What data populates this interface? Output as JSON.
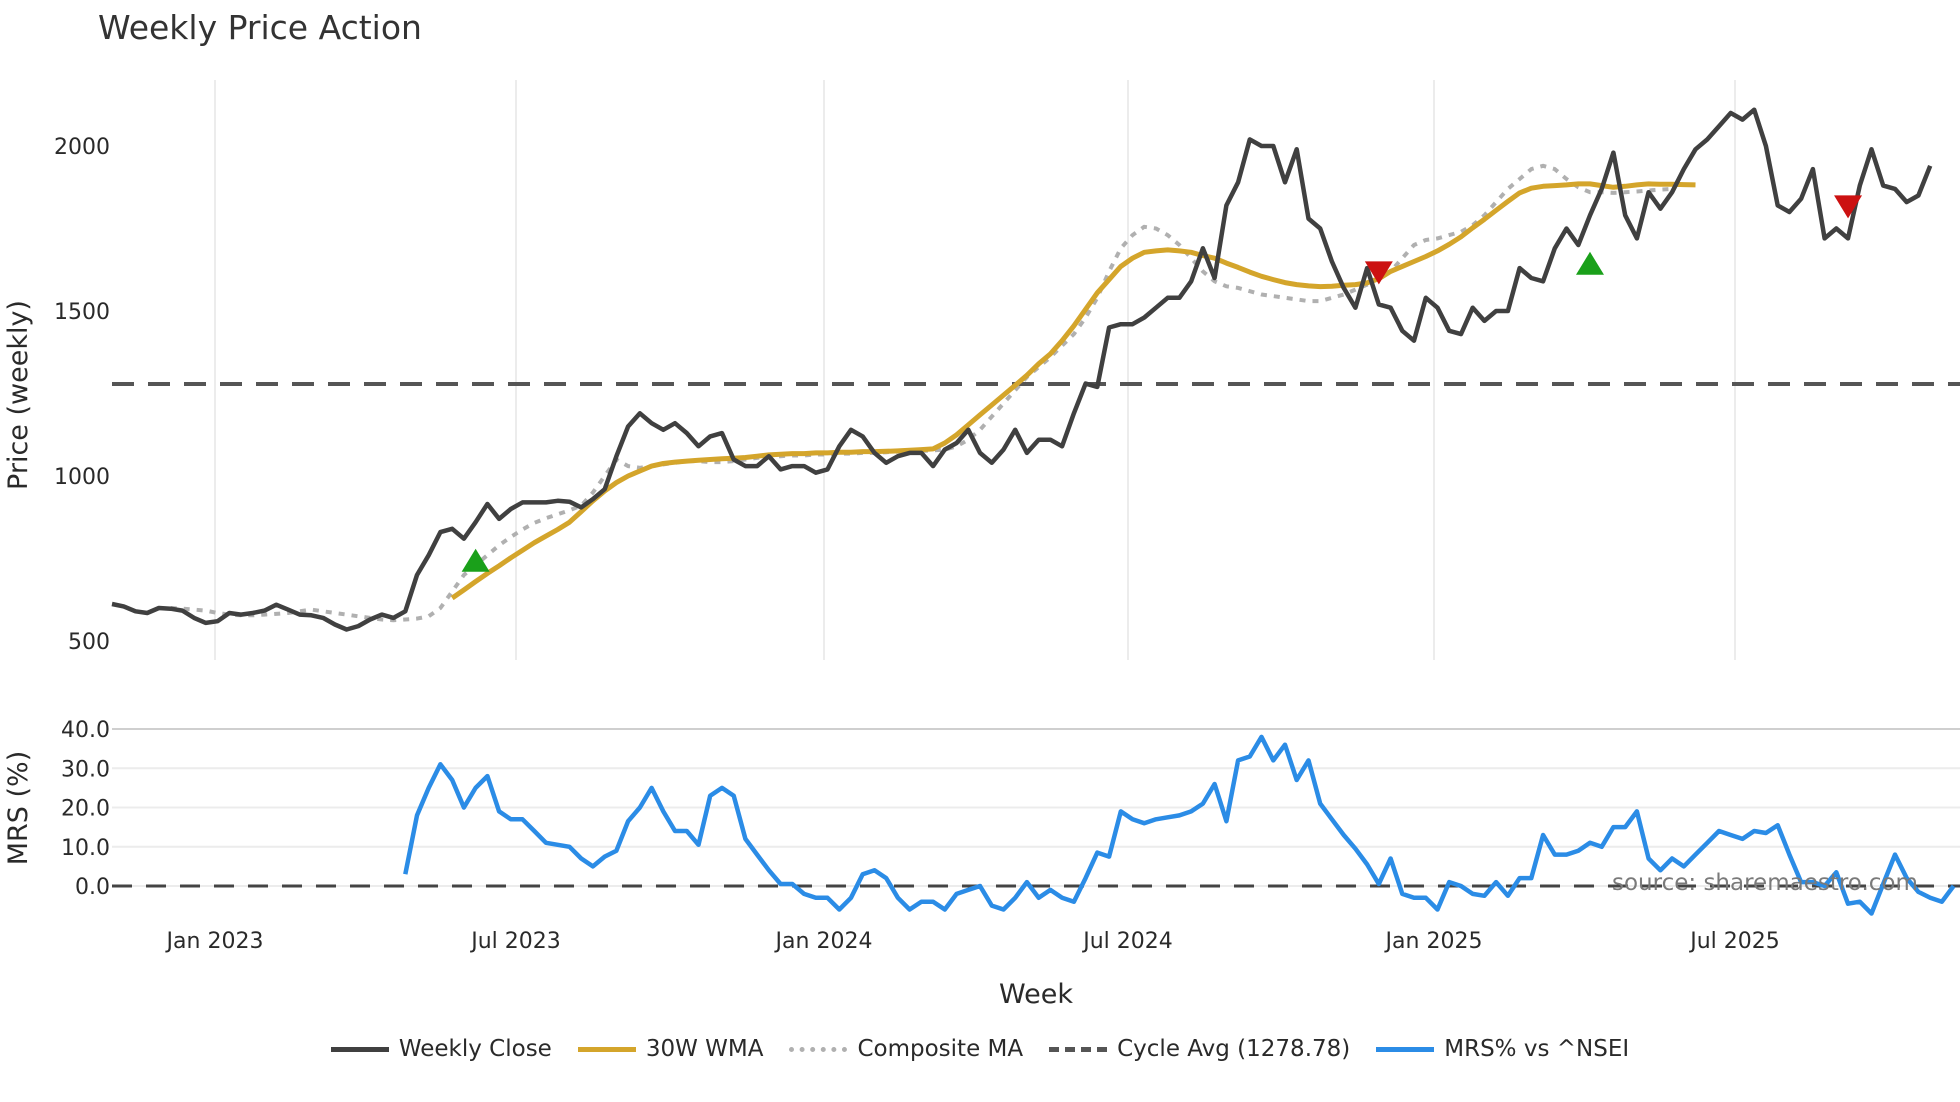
{
  "title": "Weekly Price Action",
  "source_note": "source: sharemaestro.com",
  "colors": {
    "close": "#404040",
    "wma": "#d4a52b",
    "composite": "#b0b0b0",
    "cycle": "#555555",
    "mrs": "#2b8ce6",
    "buy": "#1aa01a",
    "sell": "#cc1111",
    "grid": "#ececec"
  },
  "legend": [
    {
      "label": "Weekly Close",
      "style": "solid",
      "color": "#404040"
    },
    {
      "label": "30W WMA",
      "style": "solid",
      "color": "#d4a52b"
    },
    {
      "label": "Composite MA",
      "style": "dotted",
      "color": "#b0b0b0"
    },
    {
      "label": "Cycle Avg (1278.78)",
      "style": "dashed",
      "color": "#555555"
    },
    {
      "label": "MRS% vs ^NSEI",
      "style": "solid",
      "color": "#2b8ce6"
    }
  ],
  "chart_data": [
    {
      "type": "line",
      "title": "Weekly Price Action",
      "xlabel": "Week",
      "ylabel": "Price (weekly)",
      "ylim": [
        480,
        2180
      ],
      "yticks": [
        500,
        1000,
        1500,
        2000
      ],
      "xticks": [
        "Jan 2023",
        "Jul 2023",
        "Jan 2024",
        "Jul 2024",
        "Jan 2025",
        "Jul 2025"
      ],
      "x_start_week": 0,
      "cycle_avg": 1278.78,
      "series": [
        {
          "name": "Weekly Close",
          "values": [
            612,
            605,
            590,
            585,
            600,
            598,
            592,
            570,
            555,
            560,
            585,
            580,
            585,
            592,
            610,
            595,
            580,
            578,
            570,
            550,
            535,
            545,
            565,
            580,
            570,
            590,
            700,
            760,
            830,
            840,
            810,
            860,
            915,
            870,
            900,
            920,
            920,
            920,
            925,
            922,
            905,
            930,
            960,
            1060,
            1150,
            1190,
            1160,
            1140,
            1160,
            1130,
            1090,
            1120,
            1130,
            1050,
            1030,
            1030,
            1060,
            1020,
            1030,
            1030,
            1010,
            1020,
            1090,
            1140,
            1120,
            1070,
            1040,
            1060,
            1070,
            1070,
            1030,
            1080,
            1100,
            1140,
            1070,
            1040,
            1080,
            1140,
            1070,
            1110,
            1110,
            1090,
            1190,
            1280,
            1270,
            1450,
            1460,
            1460,
            1480,
            1510,
            1540,
            1540,
            1590,
            1690,
            1600,
            1820,
            1890,
            2020,
            2000,
            2000,
            1890,
            1990,
            1780,
            1750,
            1650,
            1570,
            1510,
            1630,
            1520,
            1510,
            1440,
            1410,
            1540,
            1510,
            1440,
            1430,
            1510,
            1470,
            1500,
            1500,
            1630,
            1600,
            1590,
            1690,
            1750,
            1700,
            1790,
            1870,
            1980,
            1790,
            1720,
            1860,
            1810,
            1860,
            1930,
            1990,
            2020,
            2060,
            2100,
            2080,
            2110,
            2000,
            1820,
            1800,
            1840,
            1930,
            1720,
            1750,
            1720,
            1880,
            1990,
            1880,
            1870,
            1830,
            1850,
            1940
          ]
        },
        {
          "name": "30W WMA",
          "start_index": 29,
          "values": [
            630,
            655,
            680,
            705,
            728,
            752,
            775,
            798,
            818,
            838,
            860,
            892,
            925,
            955,
            980,
            1000,
            1015,
            1030,
            1038,
            1042,
            1045,
            1048,
            1050,
            1052,
            1054,
            1056,
            1060,
            1064,
            1066,
            1068,
            1068,
            1070,
            1070,
            1072,
            1072,
            1074,
            1074,
            1075,
            1076,
            1078,
            1080,
            1082,
            1100,
            1125,
            1155,
            1185,
            1215,
            1245,
            1275,
            1305,
            1340,
            1370,
            1410,
            1455,
            1505,
            1555,
            1595,
            1635,
            1660,
            1678,
            1682,
            1685,
            1682,
            1678,
            1668,
            1660,
            1645,
            1632,
            1618,
            1605,
            1595,
            1586,
            1580,
            1576,
            1574,
            1575,
            1578,
            1580,
            1585,
            1598,
            1620,
            1635,
            1650,
            1665,
            1682,
            1702,
            1725,
            1752,
            1778,
            1805,
            1832,
            1858,
            1872,
            1878,
            1880,
            1882,
            1885,
            1885,
            1880,
            1875,
            1878,
            1882,
            1885,
            1884,
            1884,
            1883,
            1882
          ]
        },
        {
          "name": "Composite MA",
          "start_index": 5,
          "values": [
            600,
            598,
            595,
            592,
            585,
            580,
            578,
            578,
            580,
            582,
            585,
            590,
            595,
            590,
            585,
            580,
            575,
            570,
            565,
            563,
            565,
            568,
            575,
            600,
            650,
            700,
            730,
            760,
            790,
            815,
            838,
            858,
            872,
            884,
            896,
            910,
            950,
            1000,
            1050,
            1030,
            1025,
            1030,
            1035,
            1040,
            1045,
            1045,
            1042,
            1042,
            1045,
            1050,
            1055,
            1060,
            1060,
            1062,
            1062,
            1065,
            1065,
            1068,
            1068,
            1070,
            1070,
            1072,
            1074,
            1075,
            1076,
            1078,
            1080,
            1090,
            1110,
            1140,
            1180,
            1220,
            1260,
            1300,
            1330,
            1360,
            1395,
            1430,
            1480,
            1540,
            1620,
            1690,
            1730,
            1755,
            1750,
            1730,
            1700,
            1660,
            1620,
            1590,
            1575,
            1570,
            1560,
            1550,
            1545,
            1540,
            1535,
            1530,
            1530,
            1540,
            1550,
            1565,
            1580,
            1600,
            1620,
            1660,
            1700,
            1715,
            1720,
            1730,
            1740,
            1760,
            1790,
            1830,
            1870,
            1900,
            1930,
            1940,
            1930,
            1900,
            1875,
            1860,
            1860,
            1858,
            1860,
            1862,
            1865,
            1868,
            1870
          ]
        }
      ],
      "markers": [
        {
          "type": "buy",
          "week": 31,
          "price": 740
        },
        {
          "type": "sell",
          "week": 108,
          "price": 1620
        },
        {
          "type": "buy",
          "week": 126,
          "price": 1640
        },
        {
          "type": "sell",
          "week": 148,
          "price": 1820
        }
      ]
    },
    {
      "type": "line",
      "title": "",
      "xlabel": "Week",
      "ylabel": "MRS (%)",
      "ylim": [
        -8,
        42
      ],
      "yticks": [
        0.0,
        10.0,
        20.0,
        30.0,
        40.0
      ],
      "ytick_labels": [
        "0.0",
        "10.0",
        "20.0",
        "30.0",
        "40.0"
      ],
      "series": [
        {
          "name": "MRS% vs ^NSEI",
          "start_index": 25,
          "values": [
            3,
            18,
            25,
            31,
            27,
            20,
            25,
            28,
            19,
            17,
            17,
            14,
            11,
            10.5,
            10,
            7,
            5,
            7.5,
            9,
            16.5,
            20,
            25,
            19,
            14,
            14,
            10.5,
            23,
            25,
            23,
            12,
            8,
            4,
            0.5,
            0.5,
            -2,
            -3,
            -3,
            -6,
            -3,
            3,
            4,
            2,
            -3,
            -6,
            -4,
            -4,
            -6,
            -2,
            -1,
            0,
            -5,
            -6,
            -3,
            1,
            -3,
            -1,
            -3,
            -4,
            2,
            8.5,
            7.5,
            19,
            17,
            16,
            17,
            17.5,
            18,
            19,
            21,
            26,
            16.5,
            32,
            33,
            38,
            32,
            36,
            27,
            32,
            21,
            17,
            13,
            9.5,
            5.5,
            0.5,
            7,
            -2,
            -3,
            -3,
            -6,
            1,
            0,
            -2,
            -2.5,
            1,
            -2.5,
            2,
            2,
            13,
            8,
            8,
            9,
            11,
            10,
            15,
            15,
            19,
            7,
            4,
            7,
            5,
            8,
            11,
            14,
            13,
            12,
            14,
            13.5,
            15.5,
            8,
            1,
            1,
            0,
            3.5,
            -4.5,
            -4,
            -7,
            0.5,
            8,
            2,
            -1.5,
            -3,
            -4,
            0
          ]
        }
      ]
    }
  ]
}
